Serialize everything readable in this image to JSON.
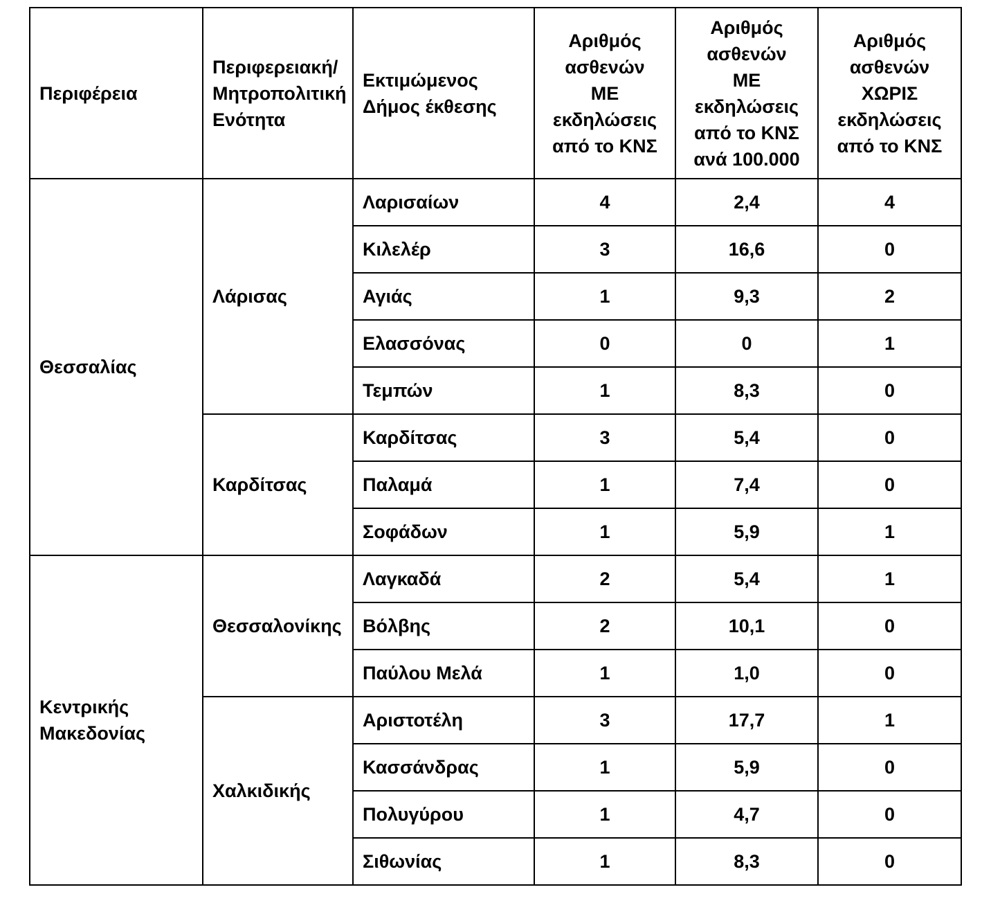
{
  "table": {
    "columns": [
      {
        "key": "region",
        "label": "Περιφέρεια"
      },
      {
        "key": "unit",
        "label": "Περιφερειακή/\nΜητροπολιτική\nΕνότητα"
      },
      {
        "key": "municipality",
        "label": "Εκτιμώμενος\nΔήμος έκθεσης"
      },
      {
        "key": "with_cns",
        "label": "Αριθμός\nασθενών\nΜΕ\nεκδηλώσεις\nαπό το ΚΝΣ"
      },
      {
        "key": "with_cns_per_100k",
        "label": "Αριθμός\nασθενών\nΜΕ\nεκδηλώσεις\nαπό το ΚΝΣ\nανά 100.000"
      },
      {
        "key": "without_cns",
        "label": "Αριθμός\nασθενών\nΧΩΡΙΣ\nεκδηλώσεις\nαπό το ΚΝΣ"
      }
    ],
    "regions": [
      {
        "name": "Θεσσαλίας",
        "units": [
          {
            "name": "Λάρισας",
            "rows": [
              {
                "municipality": "Λαρισαίων",
                "with_cns": "4",
                "with_cns_per_100k": "2,4",
                "without_cns": "4"
              },
              {
                "municipality": "Κιλελέρ",
                "with_cns": "3",
                "with_cns_per_100k": "16,6",
                "without_cns": "0"
              },
              {
                "municipality": "Αγιάς",
                "with_cns": "1",
                "with_cns_per_100k": "9,3",
                "without_cns": "2"
              },
              {
                "municipality": "Ελασσόνας",
                "with_cns": "0",
                "with_cns_per_100k": "0",
                "without_cns": "1"
              },
              {
                "municipality": "Τεμπών",
                "with_cns": "1",
                "with_cns_per_100k": "8,3",
                "without_cns": "0"
              }
            ]
          },
          {
            "name": "Καρδίτσας",
            "rows": [
              {
                "municipality": "Καρδίτσας",
                "with_cns": "3",
                "with_cns_per_100k": "5,4",
                "without_cns": "0"
              },
              {
                "municipality": "Παλαμά",
                "with_cns": "1",
                "with_cns_per_100k": "7,4",
                "without_cns": "0"
              },
              {
                "municipality": "Σοφάδων",
                "with_cns": "1",
                "with_cns_per_100k": "5,9",
                "without_cns": "1"
              }
            ]
          }
        ]
      },
      {
        "name": "Κεντρικής\nΜακεδονίας",
        "units": [
          {
            "name": "Θεσσαλονίκης",
            "rows": [
              {
                "municipality": "Λαγκαδά",
                "with_cns": "2",
                "with_cns_per_100k": "5,4",
                "without_cns": "1"
              },
              {
                "municipality": "Βόλβης",
                "with_cns": "2",
                "with_cns_per_100k": "10,1",
                "without_cns": "0"
              },
              {
                "municipality": "Παύλου Μελά",
                "with_cns": "1",
                "with_cns_per_100k": "1,0",
                "without_cns": "0"
              }
            ]
          },
          {
            "name": "Χαλκιδικής",
            "rows": [
              {
                "municipality": "Αριστοτέλη",
                "with_cns": "3",
                "with_cns_per_100k": "17,7",
                "without_cns": "1"
              },
              {
                "municipality": "Κασσάνδρας",
                "with_cns": "1",
                "with_cns_per_100k": "5,9",
                "without_cns": "0"
              },
              {
                "municipality": "Πολυγύρου",
                "with_cns": "1",
                "with_cns_per_100k": "4,7",
                "without_cns": "0"
              },
              {
                "municipality": "Σιθωνίας",
                "with_cns": "1",
                "with_cns_per_100k": "8,3",
                "without_cns": "0"
              }
            ]
          }
        ]
      }
    ]
  },
  "colors": {
    "text": "#000000",
    "border": "#000000",
    "background": "#ffffff"
  }
}
